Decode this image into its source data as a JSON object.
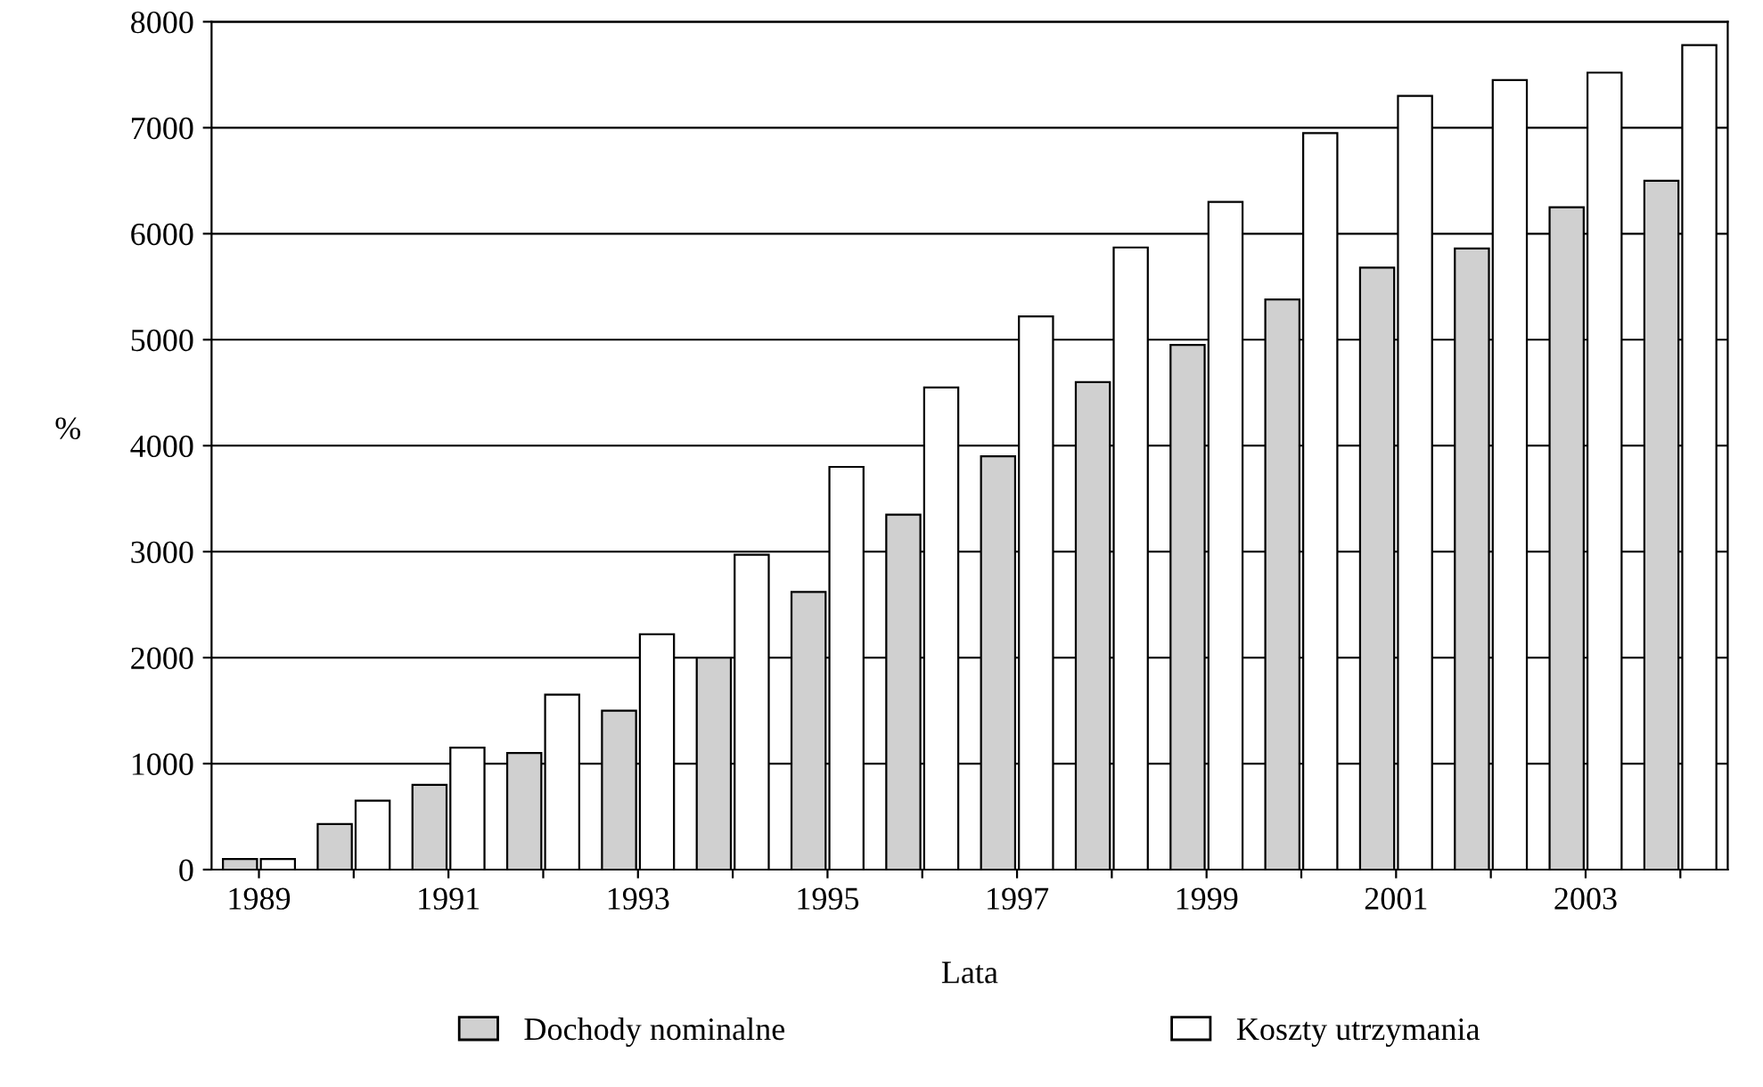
{
  "chart_data": {
    "type": "bar",
    "xlabel": "Lata",
    "ylabel": "%",
    "categories": [
      "1989",
      null,
      "1991",
      null,
      "1993",
      null,
      "1995",
      null,
      "1997",
      null,
      "1999",
      null,
      "2001",
      null,
      "2003",
      null
    ],
    "series": [
      {
        "name": "Dochody nominalne",
        "color": "#d0d0d0",
        "values": [
          100,
          430,
          800,
          1100,
          1500,
          2000,
          2620,
          3350,
          3900,
          4600,
          4950,
          5380,
          5680,
          5860,
          6250,
          6500
        ]
      },
      {
        "name": "Koszty utrzymania",
        "color": "#ffffff",
        "values": [
          100,
          650,
          1150,
          1650,
          2220,
          2970,
          3800,
          4550,
          5220,
          5870,
          6300,
          6950,
          7300,
          7450,
          7520,
          7780
        ]
      }
    ],
    "ylim": [
      0,
      8000
    ],
    "yticks": [
      0,
      1000,
      2000,
      3000,
      4000,
      5000,
      6000,
      7000,
      8000
    ],
    "grid": "y",
    "legend": "bottom"
  }
}
